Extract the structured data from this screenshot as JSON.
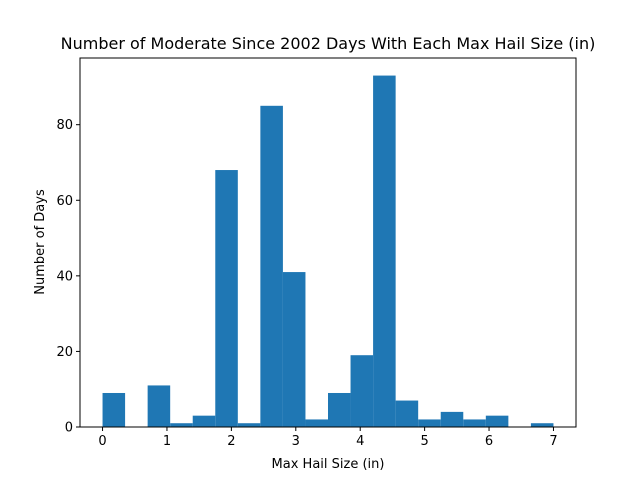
{
  "chart_data": {
    "type": "bar",
    "subtype": "histogram",
    "title": "Number of Moderate Since 2002 Days With Each Max Hail Size (in)",
    "xlabel": "Max Hail Size (in)",
    "ylabel": "Number of Days",
    "xlim": [
      -0.35,
      7.35
    ],
    "ylim": [
      0,
      97.65
    ],
    "bin_width": 0.35,
    "bin_edges": [
      0,
      0.35,
      0.7,
      1.05,
      1.4,
      1.75,
      2.1,
      2.45,
      2.8,
      3.15,
      3.5,
      3.85,
      4.2,
      4.55,
      4.9,
      5.25,
      5.6,
      5.95,
      6.3,
      6.65,
      7.0
    ],
    "values": [
      9,
      0,
      11,
      1,
      3,
      68,
      1,
      85,
      41,
      2,
      9,
      19,
      93,
      7,
      2,
      4,
      2,
      3,
      0,
      1
    ],
    "xticks": [
      0,
      1,
      2,
      3,
      4,
      5,
      6,
      7
    ],
    "xtick_labels": [
      "0",
      "1",
      "2",
      "3",
      "4",
      "5",
      "6",
      "7"
    ],
    "yticks": [
      0,
      20,
      40,
      60,
      80
    ],
    "ytick_labels": [
      "0",
      "20",
      "40",
      "60",
      "80"
    ],
    "bar_color": "#1f77b4",
    "grid": false,
    "legend": "none"
  }
}
